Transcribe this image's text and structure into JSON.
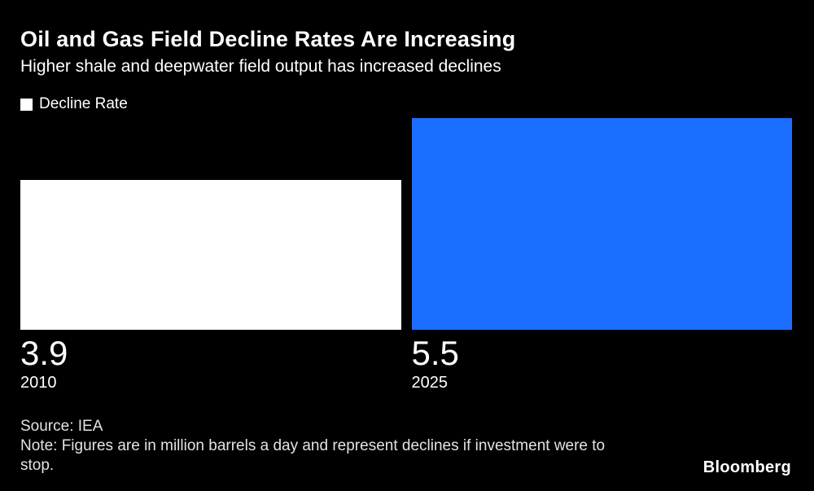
{
  "header": {
    "title": "Oil and Gas Field Decline Rates Are Increasing",
    "subtitle": "Higher shale and deepwater field output has increased declines"
  },
  "legend": {
    "label": "Decline Rate",
    "swatch_color": "#ffffff"
  },
  "chart_data": {
    "type": "bar",
    "categories": [
      "2010",
      "2025"
    ],
    "values": [
      3.9,
      5.5
    ],
    "value_labels": [
      "3.9",
      "5.5"
    ],
    "series_name": "Decline Rate",
    "bar_colors": [
      "#ffffff",
      "#1b6eff"
    ],
    "ylim": [
      0,
      5.5
    ],
    "grid": false,
    "legend_position": "top-left",
    "title": "Oil and Gas Field Decline Rates Are Increasing",
    "xlabel": "",
    "ylabel": ""
  },
  "footer": {
    "source": "Source: IEA",
    "note": "Note: Figures are in million barrels a day and represent declines if investment were to stop.",
    "brand": "Bloomberg"
  },
  "colors": {
    "background": "#000000",
    "text": "#ffffff",
    "muted_text": "#e3e3e3",
    "accent_blue": "#1b6eff"
  }
}
